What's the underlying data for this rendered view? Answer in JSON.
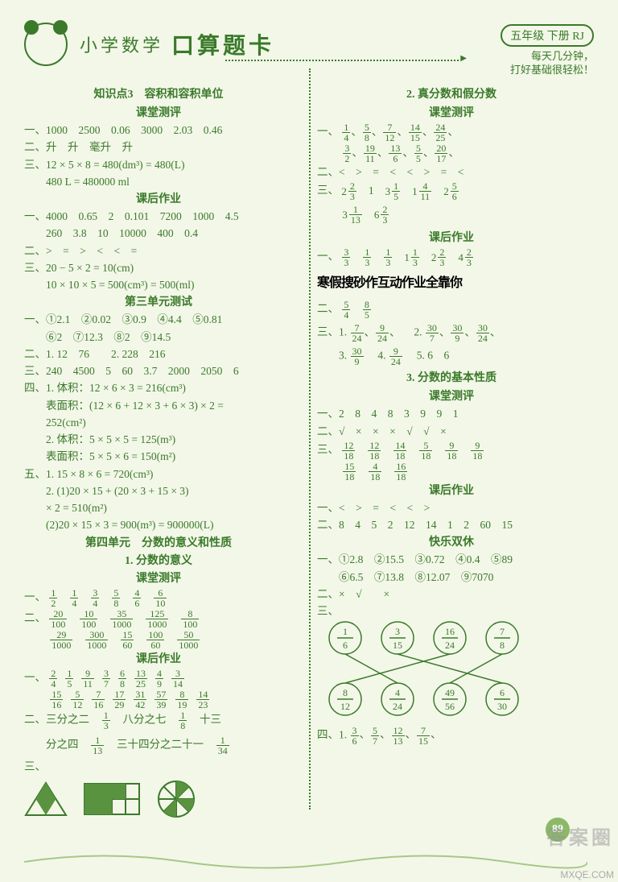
{
  "header": {
    "title1": "小学数学",
    "title2": "口算题卡",
    "grade": "五年级 下册 RJ",
    "subtitle1": "每天几分钟，",
    "subtitle2": "打好基础很轻松！"
  },
  "left": {
    "kp3_title": "知识点3　容积和容积单位",
    "classroom": "课堂测评",
    "hw": "课后作业",
    "unit3_test": "第三单元测试",
    "unit4_title": "第四单元　分数的意义和性质",
    "sec1_title": "1. 分数的意义",
    "l1": "一、1000　2500　0.06　3000　2.03　0.46",
    "l2": "二、升　升　毫升　升",
    "l3a": "三、12 × 5 × 8 = 480(dm³) = 480(L)",
    "l3b": "　　480 L = 480000 ml",
    "hw_l1a": "一、4000　0.65　2　0.101　7200　1000　4.5",
    "hw_l1b": "　　260　3.8　10　10000　400　0.4",
    "hw_l2": "二、>　=　>　<　<　=",
    "hw_l3a": "三、20 − 5 × 2 = 10(cm)",
    "hw_l3b": "　　10 × 10 × 5 = 500(cm³) = 500(ml)",
    "u3_l1a": "一、①2.1　②0.02　③0.9　④4.4　⑤0.81",
    "u3_l1b": "　　⑥2　⑦12.3　⑧2　⑨14.5",
    "u3_l2": "二、1. 12　76　　2. 228　216",
    "u3_l3": "三、240　4500　5　60　3.7　2000　2050　6",
    "u3_l4a": "四、1. 体积：12 × 6 × 3 = 216(cm³)",
    "u3_l4b": "　　表面积：(12 × 6 + 12 × 3 + 6 × 3) × 2 =",
    "u3_l4b2": "　　252(cm²)",
    "u3_l4c": "　　2. 体积：5 × 5 × 5 = 125(m³)",
    "u3_l4d": "　　表面积：5 × 5 × 6 = 150(m²)",
    "u3_l5a": "五、1. 15 × 8 × 6 = 720(cm³)",
    "u3_l5b": "　　2. (1)20 × 15 + (20 × 3 + 15 × 3)",
    "u3_l5b2": "　　× 2 = 510(m²)",
    "u3_l5c": "　　(2)20 × 15 × 3 = 900(m³) = 900000(L)",
    "f_yi_prefix": "一、",
    "f_er_prefix": "二、",
    "f_san_prefix": "三、",
    "f_row1": [
      {
        "n": "1",
        "d": "2"
      },
      {
        "n": "1",
        "d": "4"
      },
      {
        "n": "3",
        "d": "4"
      },
      {
        "n": "5",
        "d": "8"
      },
      {
        "n": "4",
        "d": "6"
      },
      {
        "n": "6",
        "d": "10"
      }
    ],
    "f_row2a": [
      {
        "n": "20",
        "d": "100"
      },
      {
        "n": "10",
        "d": "100"
      },
      {
        "n": "35",
        "d": "1000"
      },
      {
        "n": "125",
        "d": "1000"
      },
      {
        "n": "8",
        "d": "100"
      }
    ],
    "f_row2b": [
      {
        "n": "29",
        "d": "1000"
      },
      {
        "n": "300",
        "d": "1000"
      },
      {
        "n": "15",
        "d": "60"
      },
      {
        "n": "100",
        "d": "60"
      },
      {
        "n": "50",
        "d": "1000"
      }
    ],
    "hw4_row1a": [
      {
        "n": "2",
        "d": "4"
      },
      {
        "n": "1",
        "d": "5"
      },
      {
        "n": "9",
        "d": "11"
      },
      {
        "n": "3",
        "d": "7"
      },
      {
        "n": "6",
        "d": "8"
      },
      {
        "n": "13",
        "d": "25"
      },
      {
        "n": "4",
        "d": "9"
      },
      {
        "n": "3",
        "d": "14"
      }
    ],
    "hw4_row1b": [
      {
        "n": "15",
        "d": "16"
      },
      {
        "n": "5",
        "d": "12"
      },
      {
        "n": "7",
        "d": "16"
      },
      {
        "n": "17",
        "d": "29"
      },
      {
        "n": "31",
        "d": "42"
      },
      {
        "n": "57",
        "d": "39"
      },
      {
        "n": "8",
        "d": "19"
      },
      {
        "n": "14",
        "d": "23"
      }
    ],
    "hw4_l2a_pre": "二、三分之二",
    "hw4_l2a_mid": "八分之七",
    "hw4_l2a_post": "十三",
    "hw4_l2_f1": {
      "n": "1",
      "d": "3"
    },
    "hw4_l2_f2": {
      "n": "1",
      "d": "8"
    },
    "hw4_l2b_pre": "　　分之四",
    "hw4_l2b_mid": "三十四分之二十一",
    "hw4_l2b_f1": {
      "n": "1",
      "d": "13"
    },
    "hw4_l2b_f2": {
      "n": "1",
      "d": "34"
    }
  },
  "right": {
    "sec2_title": "2. 真分数和假分数",
    "classroom": "课堂测评",
    "hw": "课后作业",
    "sec3_title": "3. 分数的基本性质",
    "happy": "快乐双休",
    "r_yi": [
      {
        "n": "1",
        "d": "4"
      },
      {
        "n": "5",
        "d": "8"
      },
      {
        "n": "7",
        "d": "12"
      },
      {
        "n": "14",
        "d": "15"
      },
      {
        "n": "24",
        "d": "25"
      }
    ],
    "r_yi_b": [
      {
        "n": "3",
        "d": "2"
      },
      {
        "n": "19",
        "d": "11"
      },
      {
        "n": "13",
        "d": "6"
      },
      {
        "n": "5",
        "d": "5"
      },
      {
        "n": "20",
        "d": "17"
      }
    ],
    "r_er": "二、<　>　=　<　<　>　=　<",
    "r_san_prefix": "三、2",
    "r_san": [
      {
        "w": "2",
        "n": "2",
        "d": "3"
      },
      {
        "w": "",
        "n": "1",
        "d": ""
      },
      {
        "w": "3",
        "n": "1",
        "d": "5"
      },
      {
        "w": "1",
        "n": "4",
        "d": "11"
      },
      {
        "w": "2",
        "n": "5",
        "d": "6"
      }
    ],
    "r_san_b": [
      {
        "w": "3",
        "n": "1",
        "d": "13"
      },
      {
        "w": "6",
        "n": "2",
        "d": "3"
      }
    ],
    "hw_yi": [
      {
        "n": "3",
        "d": "3"
      },
      {
        "n": "1",
        "d": "3"
      },
      {
        "n": "1",
        "d": "3"
      },
      {
        "w": "1",
        "n": "1",
        "d": "3"
      },
      {
        "w": "2",
        "n": "2",
        "d": "3"
      },
      {
        "w": "4",
        "n": "2",
        "d": "3"
      }
    ],
    "handnote": "寒假搜砂作互动作业全靠你",
    "er_row": [
      {
        "n": "5",
        "d": "4"
      },
      {
        "n": "8",
        "d": "5"
      }
    ],
    "san_r1_pre": "三、1.",
    "san_r1": [
      {
        "n": "7",
        "d": "24"
      },
      {
        "n": "9",
        "d": "24"
      }
    ],
    "san_r1_mid": "　2.",
    "san_r1b": [
      {
        "n": "30",
        "d": "7"
      },
      {
        "n": "30",
        "d": "9"
      },
      {
        "n": "30",
        "d": "24"
      }
    ],
    "san_r2_pre": "　　3.",
    "san_r2a": {
      "n": "30",
      "d": "9"
    },
    "san_r2_mid": "　4.",
    "san_r2b": {
      "n": "9",
      "d": "24"
    },
    "san_r2_post": "　5. 6　6",
    "p3_l1": "一、2　8　4　8　3　9　9　1",
    "p3_l2": "二、√　×　×　×　√　√　×",
    "p3_san_r1": [
      {
        "n": "12",
        "d": "18"
      },
      {
        "n": "12",
        "d": "18"
      },
      {
        "n": "14",
        "d": "18"
      },
      {
        "n": "5",
        "d": "18"
      },
      {
        "n": "9",
        "d": "18"
      },
      {
        "n": "9",
        "d": "18"
      }
    ],
    "p3_san_r2": [
      {
        "n": "15",
        "d": "18"
      },
      {
        "n": "4",
        "d": "18"
      },
      {
        "n": "16",
        "d": "18"
      }
    ],
    "hw3_l1": "一、<　>　=　<　<　>",
    "hw3_l2": "二、8　4　5　2　12　14　1　2　60　15",
    "happy_l1": "一、①2.8　②15.5　③0.72　④0.4　⑤89",
    "happy_l1b": "　　⑥6.5　⑦13.8　⑧12.07　⑨7070",
    "happy_l2": "二、×　√　　×",
    "happy_l3": "三、",
    "match_top": [
      {
        "n": "1",
        "d": "6"
      },
      {
        "n": "3",
        "d": "15"
      },
      {
        "n": "16",
        "d": "24"
      },
      {
        "n": "7",
        "d": "8"
      }
    ],
    "match_bottom": [
      {
        "n": "8",
        "d": "12"
      },
      {
        "n": "4",
        "d": "24"
      },
      {
        "n": "49",
        "d": "56"
      },
      {
        "n": "6",
        "d": "30"
      }
    ],
    "match_edges": [
      [
        0,
        1
      ],
      [
        1,
        3
      ],
      [
        2,
        0
      ],
      [
        3,
        2
      ]
    ],
    "si_prefix": "四、1.",
    "si": [
      {
        "n": "3",
        "d": "6"
      },
      {
        "n": "5",
        "d": "7"
      },
      {
        "n": "12",
        "d": "13"
      },
      {
        "n": "7",
        "d": "15"
      }
    ]
  },
  "footer": {
    "pagenum": "89",
    "wm1": "答案圈",
    "wm2": "MXQE.COM"
  },
  "colors": {
    "ink": "#3a7a2a",
    "bg": "#f3f7e8",
    "fill": "#5a9340"
  }
}
